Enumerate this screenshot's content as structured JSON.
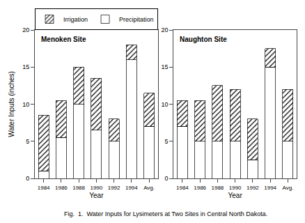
{
  "chart_data": [
    {
      "type": "bar",
      "title": "Menoken Site",
      "xlabel": "Year",
      "ylabel": "Water Inputs (inches)",
      "categories": [
        "1984",
        "1986",
        "1988",
        "1990",
        "1992",
        "1994",
        "Avg."
      ],
      "series": [
        {
          "name": "Precipitation",
          "color": "#ffffff",
          "values": [
            1.0,
            5.5,
            10.0,
            6.5,
            5.0,
            16.0,
            7.0
          ]
        },
        {
          "name": "Irrigation",
          "color": "#ffffff",
          "values": [
            7.5,
            5.0,
            5.0,
            7.0,
            3.0,
            2.0,
            4.5
          ]
        }
      ],
      "stacked": true,
      "ylim": [
        0,
        20
      ],
      "yticks": [
        0,
        5,
        10,
        15,
        20
      ],
      "grid": false,
      "legend": "upper left",
      "annotations": [
        "Fig.  1.  Water Inputs for Lysimeters at Two Sites in Central North Dakota."
      ]
    },
    {
      "type": "bar",
      "title": "Naughton Site",
      "xlabel": "Year",
      "categories": [
        "1984",
        "1986",
        "1988",
        "1990",
        "1992",
        "1994",
        "Avg."
      ],
      "series": [
        {
          "name": "Precipitation",
          "color": "#ffffff",
          "values": [
            7.0,
            5.0,
            5.0,
            5.0,
            2.5,
            15.0,
            5.0
          ]
        },
        {
          "name": "Irrigation",
          "color": "#ffffff",
          "values": [
            3.5,
            5.5,
            7.5,
            7.0,
            5.5,
            2.5,
            7.0
          ]
        }
      ],
      "stacked": true,
      "ylim": [
        0,
        20
      ],
      "yticks": [
        0,
        5,
        10,
        15,
        20
      ],
      "grid": false
    }
  ]
}
